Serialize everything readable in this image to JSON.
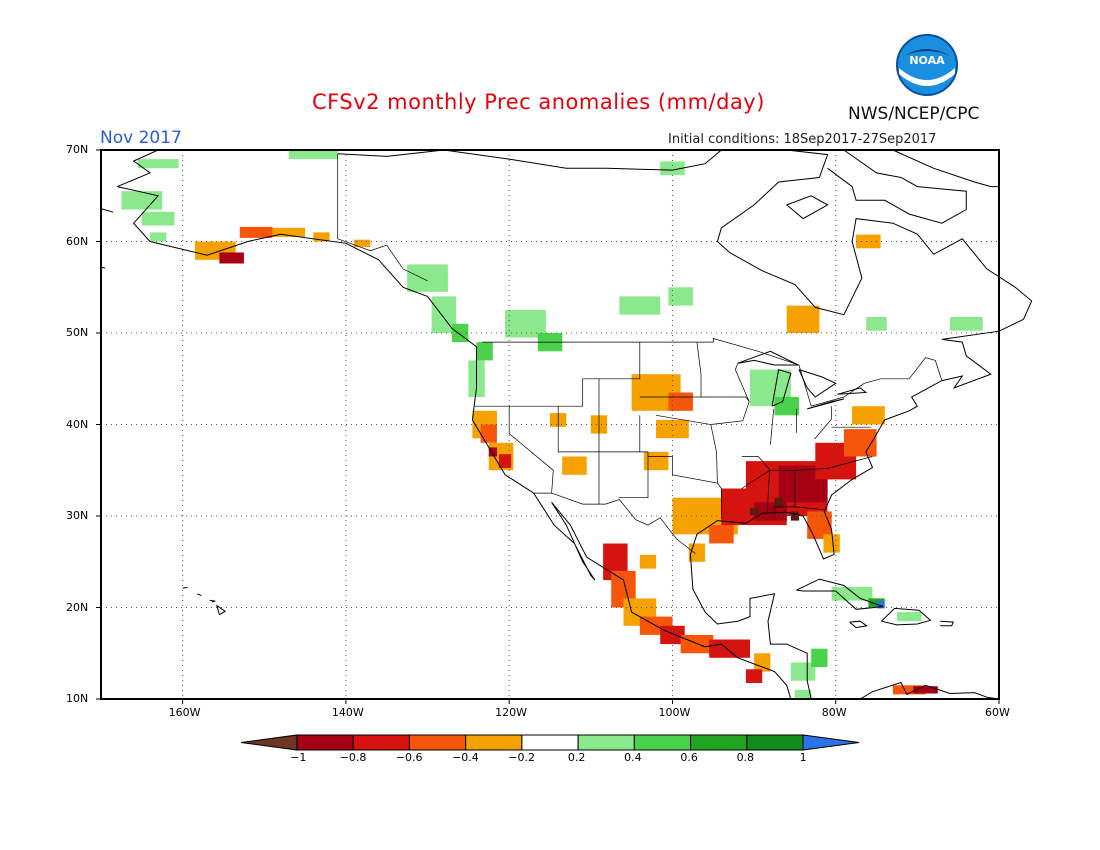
{
  "header": {
    "title": "CFSv2 monthly Prec anomalies (mm/day)",
    "month": "Nov 2017",
    "initial_conditions": "Initial conditions: 18Sep2017-27Sep2017",
    "agency": "NWS/NCEP/CPC",
    "logo_text": "NOAA"
  },
  "map": {
    "lat_labels": [
      "70N",
      "60N",
      "50N",
      "40N",
      "30N",
      "20N",
      "10N"
    ],
    "lon_labels": [
      "160W",
      "140W",
      "120W",
      "100W",
      "80W",
      "60W"
    ],
    "grid": true,
    "colors": {
      "frame": "#000000",
      "coast": "#000000",
      "dry_strong": "#5b1a0e",
      "dry_1": "#a50014",
      "dry_2": "#d6140f",
      "dry_3": "#f5560a",
      "dry_4": "#f5a100",
      "wet_1": "#8ce88c",
      "wet_2": "#4ad24a",
      "wet_3": "#1fa51f",
      "wet_4": "#0f8c1a",
      "wet_strong": "#2a74e8"
    }
  },
  "colorbar": {
    "labels": [
      "-1",
      "-0.8",
      "-0.6",
      "-0.4",
      "-0.2",
      "0.2",
      "0.4",
      "0.6",
      "0.8",
      "1"
    ],
    "colors": [
      "#a50014",
      "#d6140f",
      "#f5560a",
      "#f5a100",
      "#ffffff",
      "#8ce88c",
      "#4ad24a",
      "#1fa51f",
      "#0f8c1a"
    ],
    "left_arrow_color": "#6e3522",
    "right_arrow_color": "#2a74e8"
  }
}
